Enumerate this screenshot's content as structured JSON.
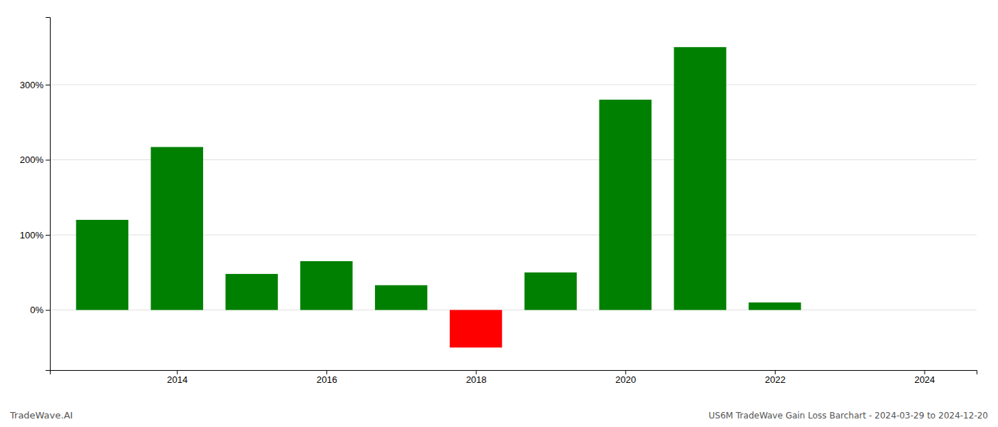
{
  "chart_data": {
    "type": "bar",
    "title": "US6M TradeWave Gain Loss Barchart - 2024-03-29 to 2024-12-20",
    "annotations": [
      "TradeWave.AI"
    ],
    "x": [
      2013,
      2014,
      2015,
      2016,
      2017,
      2018,
      2019,
      2020,
      2021,
      2022,
      2023
    ],
    "values": [
      120,
      217,
      48,
      65,
      33,
      -50,
      50,
      280,
      350,
      10,
      0
    ],
    "colors": [
      "#008000",
      "#008000",
      "#008000",
      "#008000",
      "#008000",
      "#ff0000",
      "#008000",
      "#008000",
      "#008000",
      "#008000",
      "#008000"
    ],
    "xlim": [
      2012.3,
      2024.7
    ],
    "ylim": [
      -80,
      390
    ],
    "xticks": [
      2014,
      2016,
      2018,
      2020,
      2022,
      2024
    ],
    "yticks": [
      {
        "value": 0,
        "label": "0%"
      },
      {
        "value": 100,
        "label": "100%"
      },
      {
        "value": 200,
        "label": "200%"
      },
      {
        "value": 300,
        "label": "300%"
      }
    ],
    "grid": true
  }
}
